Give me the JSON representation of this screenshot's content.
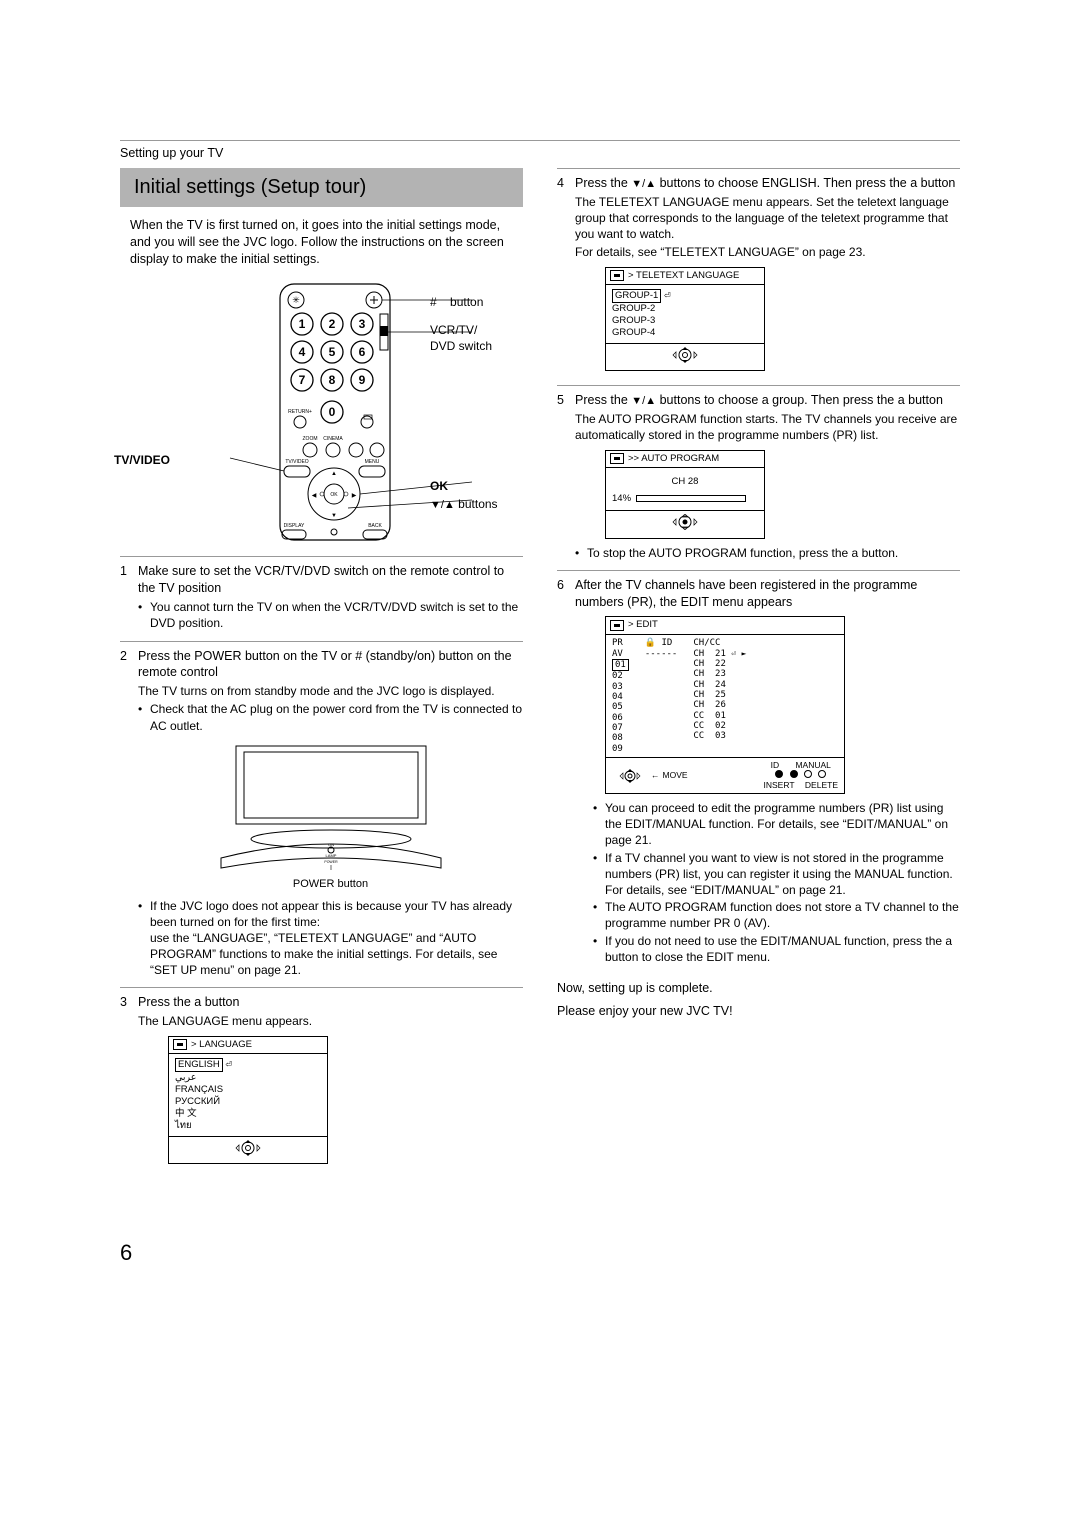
{
  "header": "Setting up your TV",
  "title": "Initial settings (Setup tour)",
  "intro": "When the TV is first turned on, it goes into the initial settings mode, and you will see the JVC logo. Follow the instructions on the screen display to make the initial settings.",
  "remote": {
    "left_label": "TV/VIDEO",
    "ok_label": "OK",
    "power_btn_label": "button",
    "switch_label": "VCR/TV/\nDVD switch",
    "arrow_label": " buttons",
    "numpad": [
      "1",
      "2",
      "3",
      "4",
      "5",
      "6",
      "7",
      "8",
      "9",
      "0"
    ],
    "btn_labels": {
      "return": "RETURN",
      "zoom": "ZOOM",
      "cinema": "CINEMA",
      "tvvideo": "TV/VIDEO",
      "menu": "MENU",
      "display": "DISPLAY",
      "back": "BACK",
      "ok": "OK"
    }
  },
  "steps": {
    "s1": {
      "head": "Make sure to set the VCR/TV/DVD switch on the remote control to the TV position",
      "b1": "You cannot turn the TV on when the VCR/TV/DVD switch is set to the DVD position."
    },
    "s2": {
      "head": "Press the POWER button on the TV or #    (standby/on) button on the remote control",
      "sub": "The TV turns on from standby mode and the JVC logo is displayed.",
      "b1": "Check that the AC plug on the power cord from the TV is connected to AC outlet.",
      "b2_a": "If the JVC logo does not appear this is because your TV has already been turned on for the first time:",
      "b2_b": "use the “LANGUAGE”, “TELETEXT LANGUAGE” and “AUTO PROGRAM” functions to make the initial settings. For details, see “SET UP menu” on page 21.",
      "power_caption": "POWER button"
    },
    "s3": {
      "head": "Press the a     button",
      "sub": "The LANGUAGE menu appears.",
      "osd_title": "> LANGUAGE",
      "languages": [
        "ENGLISH",
        "عربي",
        "FRANÇAIS",
        "РУССКИЙ",
        "中 文",
        "ไทย"
      ]
    },
    "s4": {
      "head_a": "Press the ",
      "head_b": " buttons to choose ENGLISH. Then press the a     button",
      "sub1": "The TELETEXT LANGUAGE menu appears. Set the teletext language group that corresponds to the language of the teletext programme that you want to watch.",
      "sub2": "For details, see “TELETEXT LANGUAGE” on page 23.",
      "osd_title": "> TELETEXT LANGUAGE",
      "groups": [
        "GROUP-1",
        "GROUP-2",
        "GROUP-3",
        "GROUP-4"
      ]
    },
    "s5": {
      "head_a": "Press the ",
      "head_b": " buttons to choose a group. Then press the a     button",
      "sub": "The AUTO PROGRAM function starts. The TV channels you receive are automatically stored in the programme numbers (PR) list.",
      "osd_title": ">> AUTO PROGRAM",
      "ch_label": "CH  28",
      "percent": "14%",
      "percent_val": 14,
      "b1": "To stop the AUTO PROGRAM function, press the a     button."
    },
    "s6": {
      "head": "After the TV channels have been registered in the programme numbers (PR), the EDIT menu appears",
      "osd_title": "> EDIT",
      "thead": {
        "pr": "PR",
        "id": "ID",
        "chcc": "CH/CC"
      },
      "rows": [
        {
          "pr": "AV",
          "id": "------",
          "ch": "",
          "cc": ""
        },
        {
          "pr": "01",
          "id": "",
          "ch": "CH",
          "cc": "21"
        },
        {
          "pr": "02",
          "id": "",
          "ch": "CH",
          "cc": "22"
        },
        {
          "pr": "03",
          "id": "",
          "ch": "CH",
          "cc": "23"
        },
        {
          "pr": "04",
          "id": "",
          "ch": "CH",
          "cc": "24"
        },
        {
          "pr": "05",
          "id": "",
          "ch": "CH",
          "cc": "25"
        },
        {
          "pr": "06",
          "id": "",
          "ch": "CH",
          "cc": "26"
        },
        {
          "pr": "07",
          "id": "",
          "ch": "CC",
          "cc": "01"
        },
        {
          "pr": "08",
          "id": "",
          "ch": "CC",
          "cc": "02"
        },
        {
          "pr": "09",
          "id": "",
          "ch": "CC",
          "cc": "03"
        }
      ],
      "bottom": {
        "move": "MOVE",
        "id_lbl": "ID",
        "manual_lbl": "MANUAL",
        "insert_lbl": "INSERT",
        "delete_lbl": "DELETE"
      },
      "b1": "You can proceed to edit the programme numbers (PR) list using the EDIT/MANUAL function. For details, see “EDIT/MANUAL” on page 21.",
      "b2": "If a TV channel you want to view is not stored in the programme numbers (PR) list, you can register it using the MANUAL function. For details, see “EDIT/MANUAL” on page 21.",
      "b3": "The AUTO PROGRAM function does not store a TV channel to the programme number PR 0 (AV).",
      "b4": "If you do not need to use the EDIT/MANUAL function, press the a     button to close the EDIT menu."
    }
  },
  "closing1": "Now, setting up is complete.",
  "closing2": "Please enjoy your new JVC TV!",
  "page": "6",
  "colors": {
    "titlebar_bg": "#b3b3b3",
    "text": "#000000",
    "rule": "#999999"
  }
}
